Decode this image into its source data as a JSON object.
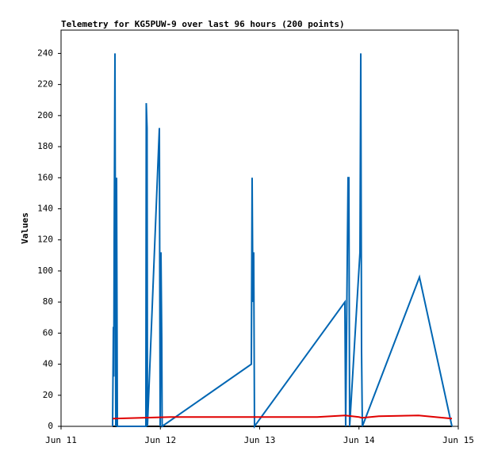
{
  "chart_data": {
    "type": "line",
    "title": "Telemetry for KG5PUW-9 over last 96 hours (200 points)",
    "ylabel": "Values",
    "xlim": [
      11,
      15
    ],
    "xticks": [
      {
        "value": 11,
        "label": "Jun 11"
      },
      {
        "value": 12,
        "label": "Jun 12"
      },
      {
        "value": 13,
        "label": "Jun 13"
      },
      {
        "value": 14,
        "label": "Jun 14"
      },
      {
        "value": 15,
        "label": "Jun 15"
      }
    ],
    "ylim": [
      0,
      255
    ],
    "yticks": [
      0,
      20,
      40,
      60,
      80,
      100,
      120,
      140,
      160,
      180,
      200,
      220,
      240
    ],
    "series": [
      {
        "color": "#000000",
        "x": [
          11.519,
          14.936
        ],
        "values": [
          0,
          0
        ]
      },
      {
        "color": "#0066b3",
        "x": [
          11.519,
          11.527,
          11.531,
          11.535,
          11.543,
          11.551,
          11.559,
          11.567,
          11.854,
          11.858,
          11.866,
          11.87,
          11.99,
          11.998,
          12.006,
          12.014,
          12.018,
          12.916,
          12.924,
          12.932,
          12.94,
          12.948,
          13.858,
          13.866,
          13.89,
          13.898,
          13.906,
          14.01,
          14.018,
          14.026,
          14.034,
          14.609,
          14.936
        ],
        "values": [
          0,
          64,
          32,
          120,
          240,
          0,
          160,
          0,
          0,
          208,
          192,
          0,
          192,
          0,
          112,
          56,
          0,
          40,
          160,
          80,
          112,
          0,
          80,
          0,
          160,
          160,
          0,
          112,
          240,
          48,
          0,
          96,
          0
        ]
      },
      {
        "color": "#e00000",
        "x": [
          11.519,
          12.1,
          13.58,
          13.86,
          14.0,
          14.03,
          14.2,
          14.6,
          14.936
        ],
        "values": [
          5,
          6,
          6,
          7,
          6,
          5.5,
          6.5,
          7,
          5
        ]
      }
    ]
  }
}
